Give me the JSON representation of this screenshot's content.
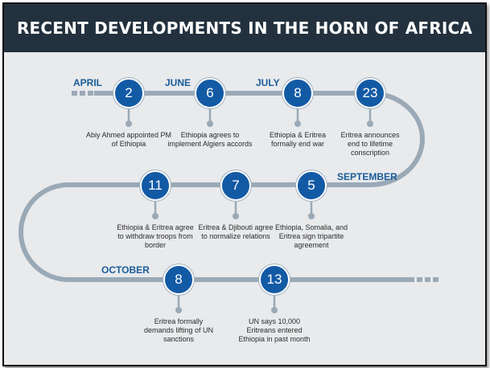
{
  "title": "RECENT DEVELOPMENTS IN THE HORN OF AFRICA",
  "colors": {
    "banner": "#23313e",
    "background": "#e8eaec",
    "path": "#9aa9b6",
    "node": "#135aa5",
    "month_text": "#1a5b98",
    "body_text": "#2b2b2b"
  },
  "months": {
    "april": "APRIL",
    "june": "JUNE",
    "july": "JULY",
    "september": "SEPTEMBER",
    "october": "OCTOBER"
  },
  "events": [
    {
      "day": "2",
      "text": "Abiy Ahmed appointed PM of Ethiopia"
    },
    {
      "day": "6",
      "text": "Ethiopia agrees to implement Algiers accords"
    },
    {
      "day": "8",
      "text": "Ethiopia & Eritrea formally end war"
    },
    {
      "day": "23",
      "text": "Eritrea announces end to lifetime conscription"
    },
    {
      "day": "5",
      "text": "Ethiopia, Somalia, and Eritrea sign tripartite agreement"
    },
    {
      "day": "7",
      "text": "Eritrea & Djibouti agree to normalize relations"
    },
    {
      "day": "11",
      "text": "Ethiopia & Eritrea agree to withdraw troops from border"
    },
    {
      "day": "8",
      "text": "Eritrea formally demands lifting of UN sanctions"
    },
    {
      "day": "13",
      "text": "UN says 10,000 Eritreans entered Ethiopia in past month"
    }
  ]
}
